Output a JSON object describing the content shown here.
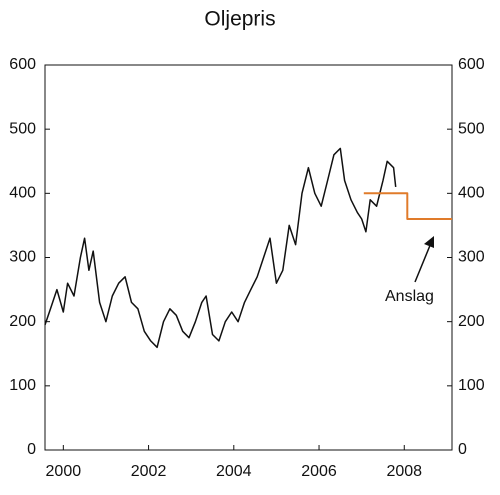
{
  "chart_data": {
    "type": "line",
    "title": "Oljepris",
    "xlim": [
      1999.57,
      2009.12
    ],
    "xticks": [
      2000,
      2002,
      2004,
      2006,
      2008
    ],
    "ylim": [
      0,
      600
    ],
    "yticks": [
      0,
      100,
      200,
      300,
      400,
      500,
      600
    ],
    "y2lim": [
      0,
      600
    ],
    "y2ticks": [
      0,
      100,
      200,
      300,
      400,
      500,
      600
    ],
    "annotation": "Anslag",
    "series": [
      {
        "color": "#111111",
        "x": [
          1999.57,
          1999.7,
          1999.85,
          2000.0,
          2000.1,
          2000.25,
          2000.4,
          2000.5,
          2000.6,
          2000.7,
          2000.85,
          2001.0,
          2001.15,
          2001.3,
          2001.45,
          2001.6,
          2001.75,
          2001.9,
          2002.05,
          2002.2,
          2002.35,
          2002.5,
          2002.65,
          2002.8,
          2002.95,
          2003.1,
          2003.25,
          2003.35,
          2003.5,
          2003.65,
          2003.8,
          2003.95,
          2004.1,
          2004.25,
          2004.4,
          2004.55,
          2004.7,
          2004.85,
          2005.0,
          2005.15,
          2005.3,
          2005.45,
          2005.6,
          2005.75,
          2005.9,
          2006.05,
          2006.2,
          2006.35,
          2006.5,
          2006.6,
          2006.75,
          2006.9,
          2007.0,
          2007.1,
          2007.2,
          2007.35,
          2007.5,
          2007.6,
          2007.75,
          2007.8
        ],
        "values": [
          195,
          220,
          250,
          215,
          260,
          240,
          300,
          330,
          280,
          310,
          230,
          200,
          240,
          260,
          270,
          230,
          220,
          185,
          170,
          160,
          200,
          220,
          210,
          185,
          175,
          200,
          230,
          240,
          180,
          170,
          200,
          215,
          200,
          230,
          250,
          270,
          300,
          330,
          260,
          280,
          350,
          320,
          400,
          440,
          400,
          380,
          420,
          460,
          470,
          420,
          390,
          370,
          360,
          340,
          390,
          380,
          420,
          450,
          440,
          410
        ]
      },
      {
        "color": "#e07b2a",
        "x": [
          2007.05,
          2008.07,
          2008.07,
          2009.12
        ],
        "values": [
          400,
          400,
          360,
          360
        ]
      }
    ]
  }
}
